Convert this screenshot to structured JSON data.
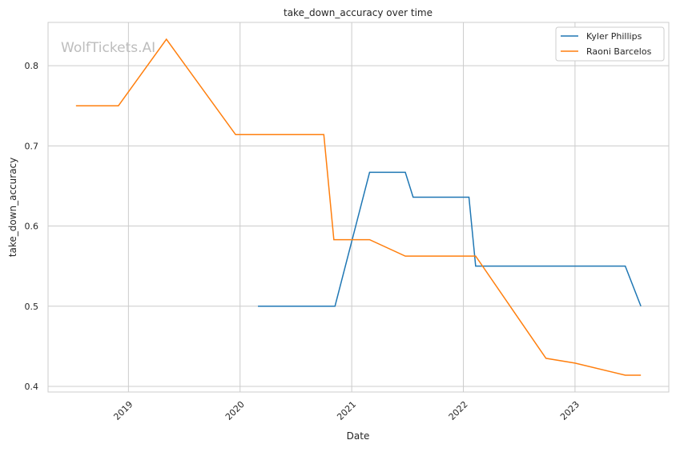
{
  "chart_data": {
    "type": "line",
    "title": "take_down_accuracy over time",
    "xlabel": "Date",
    "ylabel": "take_down_accuracy",
    "watermark": "WolfTickets.AI",
    "xlim": [
      2018.28,
      2023.84
    ],
    "ylim": [
      0.393,
      0.854
    ],
    "x_ticks": [
      2019,
      2020,
      2021,
      2022,
      2023
    ],
    "x_tick_labels": [
      "2019",
      "2020",
      "2021",
      "2022",
      "2023"
    ],
    "y_ticks": [
      0.4,
      0.5,
      0.6,
      0.7,
      0.8
    ],
    "y_tick_labels": [
      "0.4",
      "0.5",
      "0.6",
      "0.7",
      "0.8"
    ],
    "grid": true,
    "legend_position": "top-right",
    "series": [
      {
        "name": "Kyler Phillips",
        "color": "#1f77b4",
        "x": [
          2020.16,
          2020.85,
          2021.16,
          2021.48,
          2021.55,
          2022.05,
          2022.11,
          2023.45,
          2023.59
        ],
        "y": [
          0.5,
          0.5,
          0.667,
          0.667,
          0.636,
          0.636,
          0.55,
          0.55,
          0.5
        ]
      },
      {
        "name": "Raoni Barcelos",
        "color": "#ff7f0e",
        "x": [
          2018.53,
          2018.91,
          2019.34,
          2019.96,
          2020.75,
          2020.84,
          2021.16,
          2021.48,
          2022.11,
          2022.74,
          2023.0,
          2023.45,
          2023.59
        ],
        "y": [
          0.75,
          0.75,
          0.833,
          0.714,
          0.714,
          0.583,
          0.583,
          0.5625,
          0.5625,
          0.435,
          0.429,
          0.414,
          0.414
        ]
      }
    ]
  }
}
